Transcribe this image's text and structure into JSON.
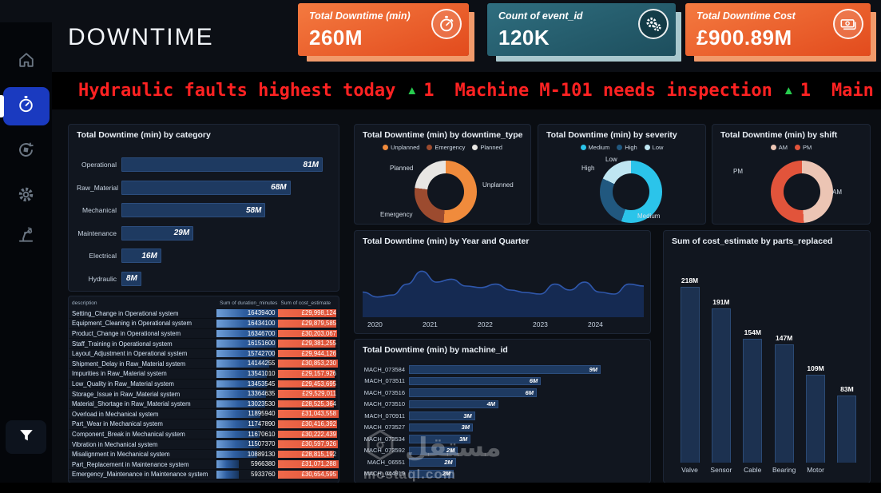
{
  "app": {
    "title": "DOWNTIME"
  },
  "colors": {
    "accent_orange": "#e9582b",
    "accent_teal": "#2a6273",
    "ticker_red": "#ff2222",
    "ticker_green": "#27cc4e",
    "bar_blue": "#1e3a61",
    "table_bar_blue": "#3c6aa8",
    "table_bar_orange": "#e25840",
    "active_nav_blue": "#1a3ac0"
  },
  "kpis": [
    {
      "label": "Total Downtime (min)",
      "value": "260M",
      "icon": "stopwatch-icon"
    },
    {
      "label": "Count of event_id",
      "value": "120K",
      "icon": "gears-icon"
    },
    {
      "label": "Total Downtime Cost",
      "value": "£900.89M",
      "icon": "money-icon"
    }
  ],
  "ticker": {
    "items": [
      {
        "text": "Hydraulic faults highest today",
        "arrow": "▲",
        "count": "1"
      },
      {
        "text": "Machine M-101 needs inspection",
        "arrow": "▲",
        "count": "1"
      },
      {
        "text": "Main",
        "arrow": "",
        "count": ""
      }
    ]
  },
  "sidebar": {
    "items": [
      {
        "icon": "home-icon",
        "active": false
      },
      {
        "icon": "stopwatch-icon",
        "active": true
      },
      {
        "icon": "sync-cube-icon",
        "active": false
      },
      {
        "icon": "gear-icon",
        "active": false
      },
      {
        "icon": "robot-arm-icon",
        "active": false
      }
    ],
    "bottom": {
      "icon": "filter-icon"
    }
  },
  "watermark": {
    "name": "مستقل",
    "domain": "mostaql.com"
  },
  "chart_data": [
    {
      "id": "category",
      "type": "bar",
      "orientation": "horizontal",
      "title": "Total Downtime (min) by category",
      "categories": [
        "Operational",
        "Raw_Material",
        "Mechanical",
        "Maintenance",
        "Electrical",
        "Hydraulic"
      ],
      "values": [
        81,
        68,
        58,
        29,
        16,
        8
      ],
      "labels": [
        "81M",
        "68M",
        "58M",
        "29M",
        "16M",
        "8M"
      ],
      "unit": "M minutes"
    },
    {
      "id": "downtime_type",
      "type": "pie",
      "title": "Total Downtime (min) by downtime_type",
      "slices": [
        {
          "name": "Unplanned",
          "pct": 51,
          "color": "#f08b3c"
        },
        {
          "name": "Emergency",
          "pct": 26,
          "color": "#9c4b2f"
        },
        {
          "name": "Planned",
          "pct": 23,
          "color": "#e8e6e3"
        }
      ]
    },
    {
      "id": "severity",
      "type": "pie",
      "title": "Total Downtime (min) by severity",
      "slices": [
        {
          "name": "Medium",
          "pct": 55,
          "color": "#2bc4ea"
        },
        {
          "name": "High",
          "pct": 27,
          "color": "#21587f"
        },
        {
          "name": "Low",
          "pct": 18,
          "color": "#bfe6f2"
        }
      ]
    },
    {
      "id": "shift",
      "type": "pie",
      "title": "Total Downtime (min) by shift",
      "slices": [
        {
          "name": "AM",
          "pct": 49,
          "color": "#ecc5b4"
        },
        {
          "name": "PM",
          "pct": 51,
          "color": "#e2543b"
        }
      ]
    },
    {
      "id": "year_quarter",
      "type": "area",
      "title": "Total Downtime (min) by Year and Quarter",
      "x_ticks": [
        "2020",
        "2021",
        "2022",
        "2023",
        "2024"
      ],
      "x_unit": "quarter",
      "values": [
        46,
        36,
        40,
        62,
        88,
        66,
        72,
        58,
        55,
        62,
        50,
        45,
        42,
        62,
        50,
        66,
        46,
        42,
        62,
        58
      ],
      "ylim": [
        0,
        100
      ]
    },
    {
      "id": "machine",
      "type": "bar",
      "orientation": "horizontal",
      "title": "Total Downtime (min) by machine_id",
      "categories": [
        "MACH_073584",
        "MACH_073511",
        "MACH_073516",
        "MACH_073510",
        "MACH_070911",
        "MACH_073527",
        "MACH_073534",
        "MACH_073592",
        "MACH_06551",
        "MACH_044919"
      ],
      "values": [
        9,
        6.2,
        6,
        4.2,
        3.1,
        3,
        2.9,
        2.3,
        2.2,
        2.1
      ],
      "labels": [
        "9M",
        "6M",
        "6M",
        "4M",
        "3M",
        "3M",
        "3M",
        "2M",
        "2M",
        "2M"
      ]
    },
    {
      "id": "parts",
      "type": "bar",
      "orientation": "vertical",
      "title": "Sum of cost_estimate by parts_replaced",
      "categories": [
        "Valve",
        "Sensor",
        "Cable",
        "Bearing",
        "Motor",
        ""
      ],
      "values": [
        218,
        191,
        154,
        147,
        109,
        83
      ],
      "labels": [
        "218M",
        "191M",
        "154M",
        "147M",
        "109M",
        "83M"
      ],
      "unit": "M"
    },
    {
      "id": "breakdown_table",
      "type": "table",
      "columns": [
        "description",
        "Sum of duration_minutes",
        "Sum of cost_estimate"
      ],
      "rows": [
        [
          "Setting_Change in Operational system",
          16439400,
          "£29,998,124"
        ],
        [
          "Equipment_Cleaning in Operational system",
          16434100,
          "£29,879,585"
        ],
        [
          "Product_Change in Operational system",
          16346700,
          "£30,203,067"
        ],
        [
          "Staff_Training in Operational system",
          16151600,
          "£29,381,255"
        ],
        [
          "Layout_Adjustment in Operational system",
          15742700,
          "£29,944,126"
        ],
        [
          "Shipment_Delay in Raw_Material system",
          14144255,
          "£30,853,230"
        ],
        [
          "Impurities in Raw_Material system",
          13541010,
          "£29,157,926"
        ],
        [
          "Low_Quality in Raw_Material system",
          13453545,
          "£29,453,695"
        ],
        [
          "Storage_Issue in Raw_Material system",
          13364635,
          "£29,529,011"
        ],
        [
          "Material_Shortage in Raw_Material system",
          13023530,
          "£28,525,364"
        ],
        [
          "Overload in Mechanical system",
          11895940,
          "£31,043,558"
        ],
        [
          "Part_Wear in Mechanical system",
          11747890,
          "£30,416,392"
        ],
        [
          "Component_Break in Mechanical system",
          11670610,
          "£30,222,439"
        ],
        [
          "Vibration in Mechanical system",
          11507370,
          "£30,597,926"
        ],
        [
          "Misalignment in Mechanical system",
          10889130,
          "£28,815,192"
        ],
        [
          "Part_Replacement in Maintenance system",
          5966380,
          "£31,071,288"
        ],
        [
          "Emergency_Maintenance in Maintenance system",
          5933760,
          "£30,654,595"
        ]
      ]
    }
  ]
}
